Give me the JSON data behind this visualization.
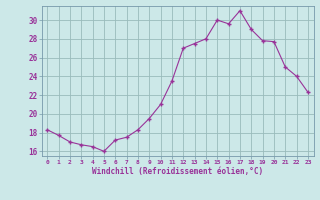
{
  "x": [
    0,
    1,
    2,
    3,
    4,
    5,
    6,
    7,
    8,
    9,
    10,
    11,
    12,
    13,
    14,
    15,
    16,
    17,
    18,
    19,
    20,
    21,
    22,
    23
  ],
  "y": [
    18.3,
    17.7,
    17.0,
    16.7,
    16.5,
    16.0,
    17.2,
    17.5,
    18.3,
    19.5,
    21.0,
    23.5,
    27.0,
    27.5,
    28.0,
    30.0,
    29.6,
    31.0,
    29.0,
    27.8,
    27.7,
    25.0,
    24.0,
    22.3
  ],
  "ylim": [
    15.5,
    31.5
  ],
  "yticks": [
    16,
    18,
    20,
    22,
    24,
    26,
    28,
    30
  ],
  "xlabel": "Windchill (Refroidissement éolien,°C)",
  "line_color": "#993399",
  "marker_color": "#993399",
  "bg_color": "#cce8e8",
  "grid_color": "#99bbbb",
  "tick_color": "#993399",
  "xlabel_color": "#993399",
  "spine_color": "#7799aa"
}
